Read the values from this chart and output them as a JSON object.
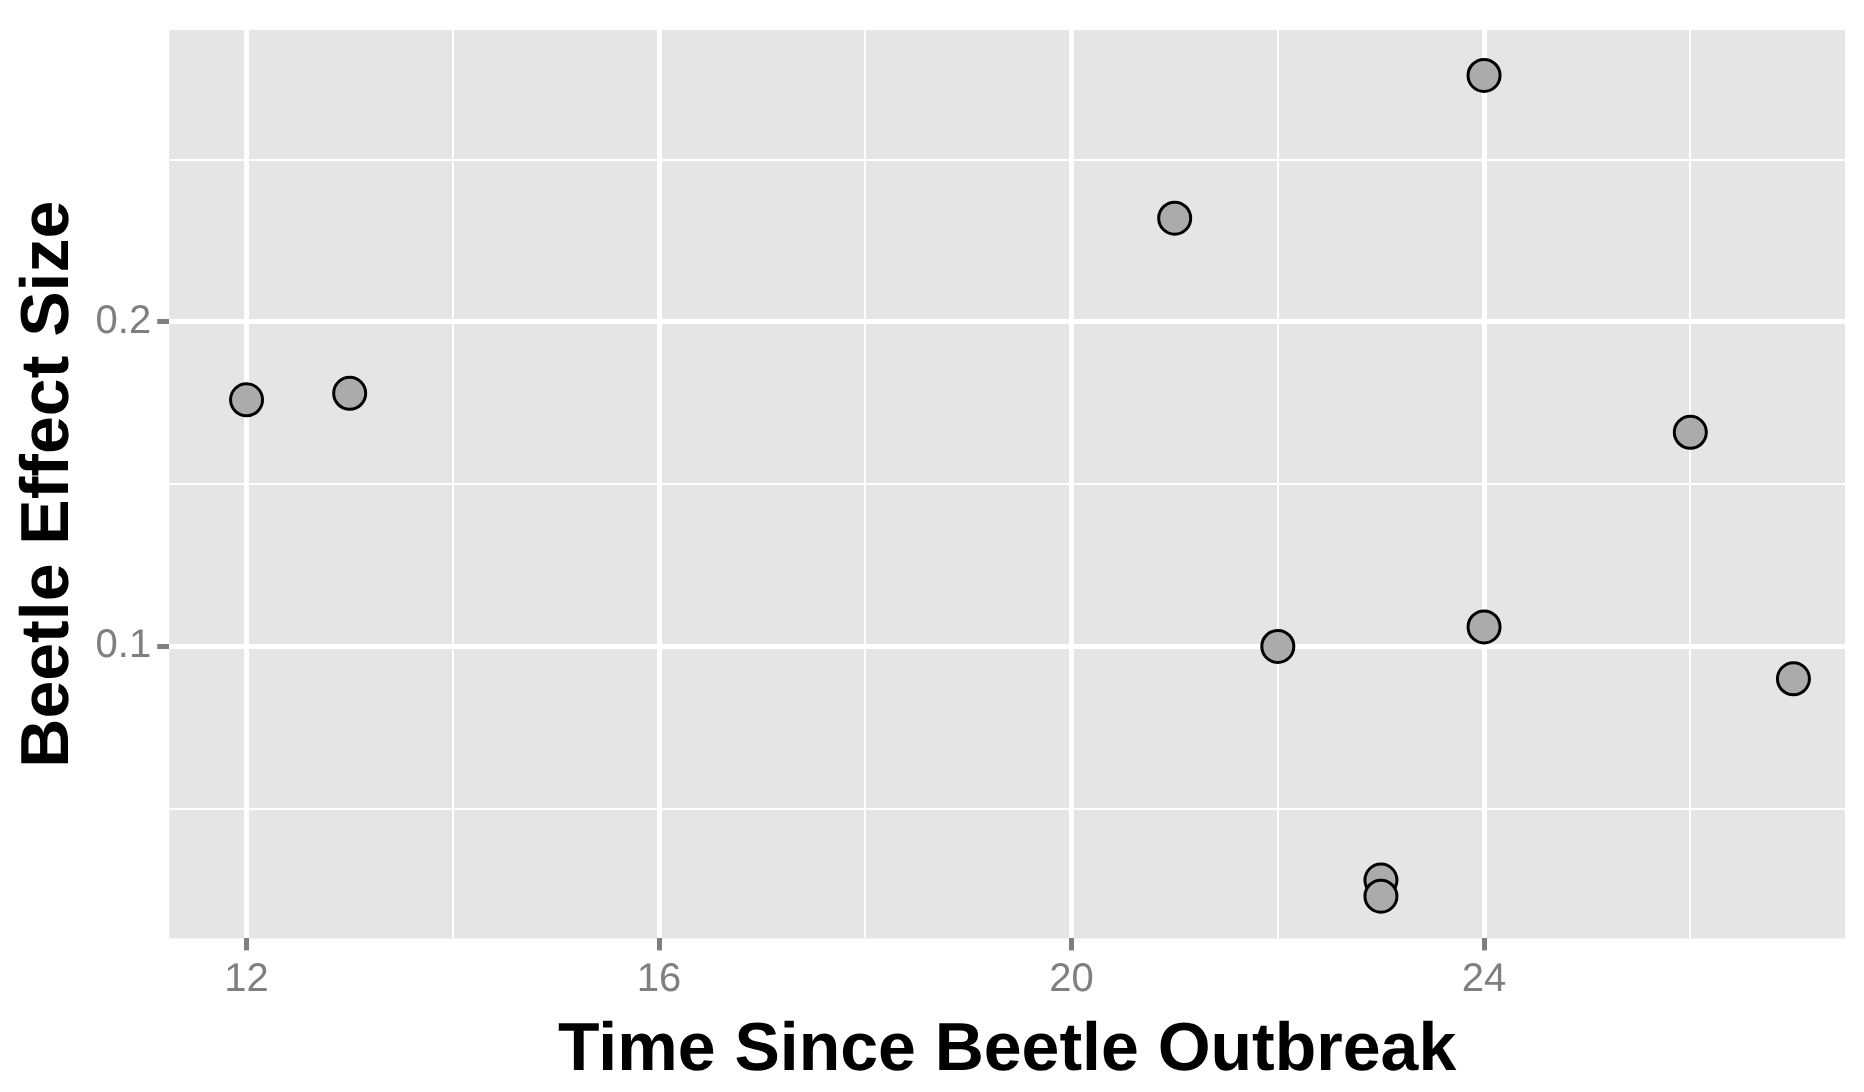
{
  "chart_data": {
    "type": "scatter",
    "xlabel": "Time Since Beetle Outbreak",
    "ylabel": "Beetle Effect Size",
    "x": [
      12,
      13,
      21,
      24,
      22,
      24,
      26,
      27,
      23,
      23
    ],
    "values": [
      0.176,
      0.178,
      0.232,
      0.276,
      0.1,
      0.106,
      0.166,
      0.09,
      0.028,
      0.023
    ],
    "color": "#ababab",
    "marker": "circle",
    "grid": true,
    "xlim": [
      11.25,
      27.5
    ],
    "xticks": [
      12,
      {
        "value": 14,
        "label": null
      },
      16,
      {
        "value": 18,
        "label": null
      },
      20,
      {
        "value": 22,
        "label": null
      },
      24,
      {
        "value": 26,
        "label": null
      }
    ],
    "ylim": [
      0.01,
      0.29
    ],
    "yticks": [
      {
        "value": 0.05,
        "label": null
      },
      0.1,
      {
        "value": 0.15,
        "label": null
      },
      0.2,
      {
        "value": 0.25,
        "label": null
      }
    ]
  }
}
